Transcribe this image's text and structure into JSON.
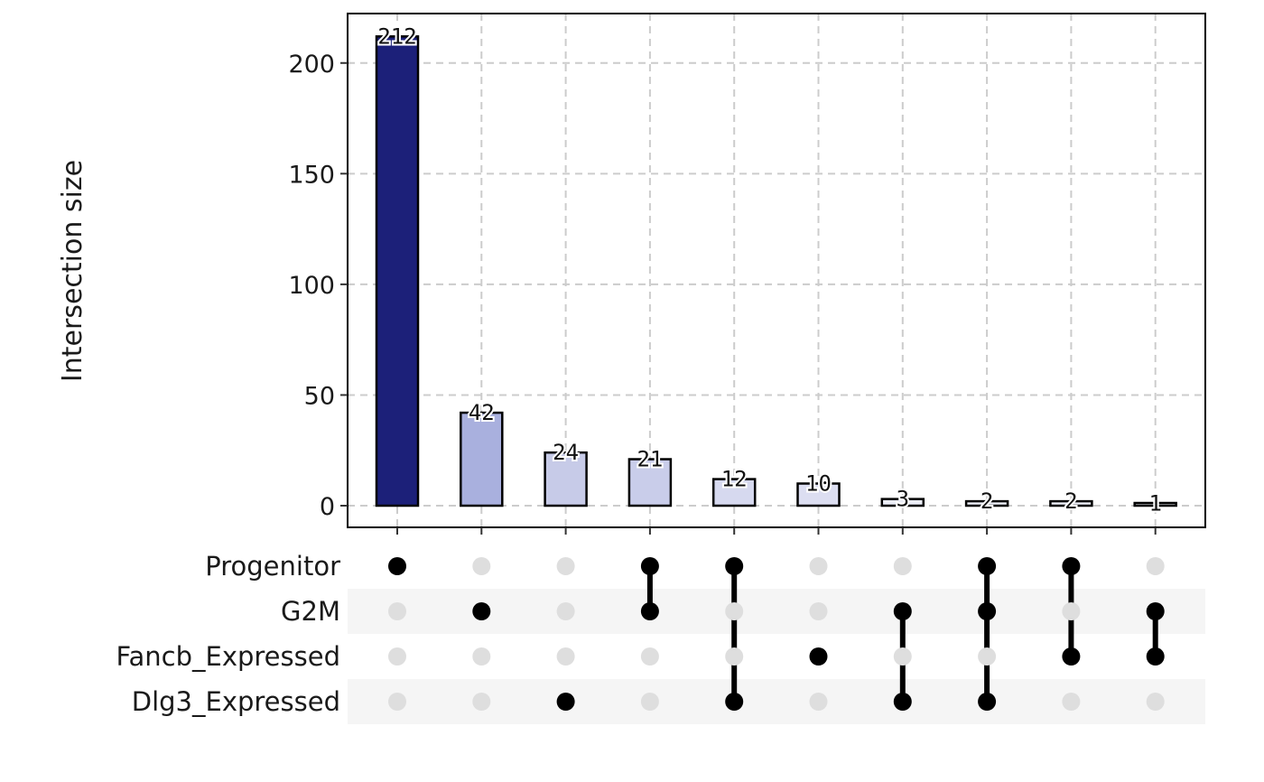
{
  "chart_data": {
    "type": "bar",
    "ylabel": "Intersection size",
    "xlabel": "",
    "ylim": [
      0,
      222
    ],
    "yticks": [
      0,
      50,
      100,
      150,
      200
    ],
    "grid": true,
    "sets": [
      "Progenitor",
      "G2M",
      "Fancb_Expressed",
      "Dlg3_Expressed"
    ],
    "intersections": [
      {
        "value": 212,
        "label": "212",
        "members": [
          "Progenitor"
        ],
        "color": "#1c2079"
      },
      {
        "value": 42,
        "label": "42",
        "members": [
          "G2M"
        ],
        "color": "#a9b0de"
      },
      {
        "value": 24,
        "label": "24",
        "members": [
          "Dlg3_Expressed"
        ],
        "color": "#c7cbe8"
      },
      {
        "value": 21,
        "label": "21",
        "members": [
          "Progenitor",
          "G2M"
        ],
        "color": "#c9cdea"
      },
      {
        "value": 12,
        "label": "12",
        "members": [
          "Progenitor",
          "Dlg3_Expressed"
        ],
        "color": "#d6d9ef"
      },
      {
        "value": 10,
        "label": "10",
        "members": [
          "Fancb_Expressed"
        ],
        "color": "#dcdef1"
      },
      {
        "value": 3,
        "label": "3",
        "members": [
          "G2M",
          "Dlg3_Expressed"
        ],
        "color": "#eceef8"
      },
      {
        "value": 2,
        "label": "2",
        "members": [
          "Progenitor",
          "G2M",
          "Dlg3_Expressed"
        ],
        "color": "#eef0f9"
      },
      {
        "value": 2,
        "label": "2",
        "members": [
          "Progenitor",
          "Fancb_Expressed"
        ],
        "color": "#eef0f9"
      },
      {
        "value": 1,
        "label": "1",
        "members": [
          "G2M",
          "Fancb_Expressed"
        ],
        "color": "#f2f3fb"
      }
    ],
    "colors": {
      "dot_active": "#000000",
      "dot_inactive": "#dedede",
      "grid": "#cccccc",
      "stripe": "#f5f5f5"
    }
  }
}
